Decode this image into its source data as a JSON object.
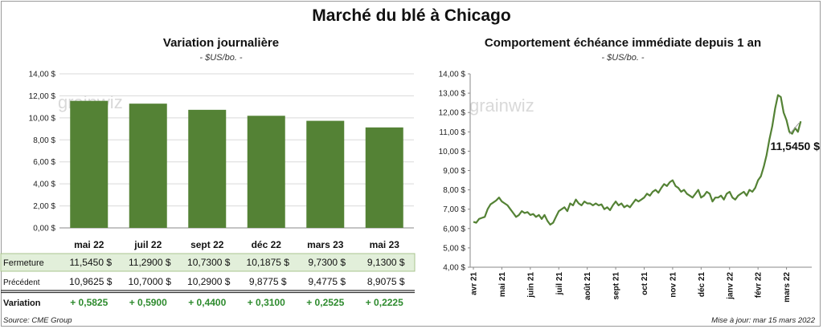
{
  "title": "Marché du blé à Chicago",
  "source": "Source: CME Group",
  "updated": "Mise à jour: mar 15 mars 2022",
  "chart_data": [
    {
      "type": "bar",
      "title": "Variation journalière",
      "unit_label": "- $US/bo. -",
      "watermark": "grainwiz",
      "categories": [
        "mai 22",
        "juil 22",
        "sept 22",
        "déc 22",
        "mars 23",
        "mai 23"
      ],
      "values": [
        11.545,
        11.29,
        10.73,
        10.1875,
        9.73,
        9.13
      ],
      "ylim": [
        0,
        14
      ],
      "yticks": [
        "0,00 $",
        "2,00 $",
        "4,00 $",
        "6,00 $",
        "8,00 $",
        "10,00 $",
        "12,00 $",
        "14,00 $"
      ],
      "bar_color": "#548235",
      "grid": true,
      "table": {
        "rows": [
          {
            "label": "Fermeture",
            "cells": [
              "11,5450 $",
              "11,2900 $",
              "10,7300 $",
              "10,1875 $",
              "9,7300 $",
              "9,1300 $"
            ]
          },
          {
            "label": "Précédent",
            "cells": [
              "10,9625 $",
              "10,7000 $",
              "10,2900 $",
              "9,8775 $",
              "9,4775 $",
              "8,9075 $"
            ]
          },
          {
            "label": "Variation",
            "cells": [
              "+ 0,5825",
              "+ 0,5900",
              "+ 0,4400",
              "+ 0,3100",
              "+ 0,2525",
              "+ 0,2225"
            ]
          }
        ],
        "highlight_color": "#e2efda",
        "positive_color": "#2e8b2e"
      }
    },
    {
      "type": "line",
      "title": "Comportement  échéance immédiate depuis 1 an",
      "unit_label": "- $US/bo. -",
      "watermark": "grainwiz",
      "xticks": [
        "avr 21",
        "mai 21",
        "juin 21",
        "juil 21",
        "août 21",
        "sept 21",
        "oct 21",
        "nov 21",
        "déc 21",
        "janv 22",
        "févr 22",
        "mars 22"
      ],
      "ylim": [
        4,
        14
      ],
      "yticks": [
        "4,00 $",
        "5,00 $",
        "6,00 $",
        "7,00 $",
        "8,00 $",
        "9,00 $",
        "10,00 $",
        "11,00 $",
        "12,00 $",
        "13,00 $",
        "14,00 $"
      ],
      "line_color": "#548235",
      "last_value_label": "11,5450 $",
      "series": [
        {
          "x": [
            0,
            0.1,
            0.2,
            0.3,
            0.4,
            0.5,
            0.6,
            0.7,
            0.8,
            0.9,
            1.0,
            1.1,
            1.2,
            1.3,
            1.4,
            1.5,
            1.6,
            1.7,
            1.8,
            1.9,
            2.0,
            2.1,
            2.2,
            2.3,
            2.4,
            2.5,
            2.6,
            2.7,
            2.8,
            2.9,
            3.0,
            3.1,
            3.2,
            3.3,
            3.4,
            3.5,
            3.6,
            3.7,
            3.8,
            3.9,
            4.0,
            4.1,
            4.2,
            4.3,
            4.4,
            4.5,
            4.6,
            4.7,
            4.8,
            4.9,
            5.0,
            5.1,
            5.2,
            5.3,
            5.4,
            5.5,
            5.6,
            5.7,
            5.8,
            5.9,
            6.0,
            6.1,
            6.2,
            6.3,
            6.4,
            6.5,
            6.6,
            6.7,
            6.8,
            6.9,
            7.0,
            7.1,
            7.2,
            7.3,
            7.4,
            7.5,
            7.6,
            7.7,
            7.8,
            7.9,
            8.0,
            8.1,
            8.2,
            8.3,
            8.4,
            8.5,
            8.6,
            8.7,
            8.8,
            8.9,
            9.0,
            9.1,
            9.2,
            9.3,
            9.4,
            9.5,
            9.6,
            9.7,
            9.8,
            9.9,
            10.0,
            10.1,
            10.2,
            10.3,
            10.4,
            10.5,
            10.6,
            10.7,
            10.8,
            10.9,
            11.0,
            11.1,
            11.2,
            11.3,
            11.4,
            11.5
          ],
          "y": [
            6.35,
            6.3,
            6.5,
            6.55,
            6.6,
            7.0,
            7.25,
            7.35,
            7.45,
            7.6,
            7.4,
            7.3,
            7.2,
            7.0,
            6.8,
            6.6,
            6.7,
            6.9,
            6.8,
            6.85,
            6.7,
            6.75,
            6.6,
            6.7,
            6.5,
            6.7,
            6.4,
            6.2,
            6.3,
            6.6,
            6.9,
            7.0,
            7.1,
            6.9,
            7.3,
            7.2,
            7.5,
            7.3,
            7.2,
            7.4,
            7.3,
            7.3,
            7.2,
            7.3,
            7.2,
            7.25,
            7.0,
            7.1,
            6.95,
            7.2,
            7.4,
            7.2,
            7.3,
            7.1,
            7.2,
            7.1,
            7.3,
            7.5,
            7.4,
            7.5,
            7.6,
            7.8,
            7.7,
            7.9,
            8.0,
            7.85,
            8.1,
            8.3,
            8.2,
            8.4,
            8.5,
            8.2,
            8.1,
            7.9,
            8.0,
            7.8,
            7.7,
            7.6,
            7.8,
            8.0,
            7.6,
            7.7,
            7.9,
            7.8,
            7.4,
            7.6,
            7.6,
            7.7,
            7.5,
            7.8,
            7.9,
            7.6,
            7.5,
            7.7,
            7.8,
            7.9,
            7.7,
            8.0,
            7.9,
            8.1,
            8.5,
            8.7,
            9.2,
            9.8,
            10.6,
            11.3,
            12.2,
            12.9,
            12.8,
            12.0,
            11.6,
            11.0,
            10.9,
            11.2,
            11.0,
            11.545
          ]
        }
      ]
    }
  ]
}
